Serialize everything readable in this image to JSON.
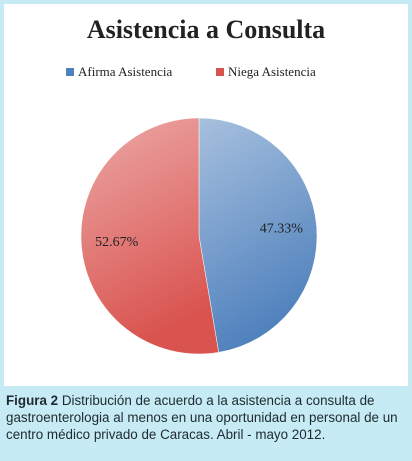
{
  "chart_data": {
    "type": "pie",
    "title": "Asistencia a Consulta",
    "categories": [
      "Afirma Asistencia",
      "Niega Asistencia"
    ],
    "values": [
      47.33,
      52.67
    ],
    "value_labels": [
      "47.33%",
      "52.67%"
    ],
    "colors": [
      "#4f81bd",
      "#d9534f"
    ],
    "legend": "top"
  },
  "figure_caption": {
    "label": "Figura 2",
    "text": "Distribución de acuerdo a la asistencia a consulta de gastroenterologia al menos en una oportunidad en personal de un centro médico privado de Caracas. Abril - mayo 2012."
  }
}
